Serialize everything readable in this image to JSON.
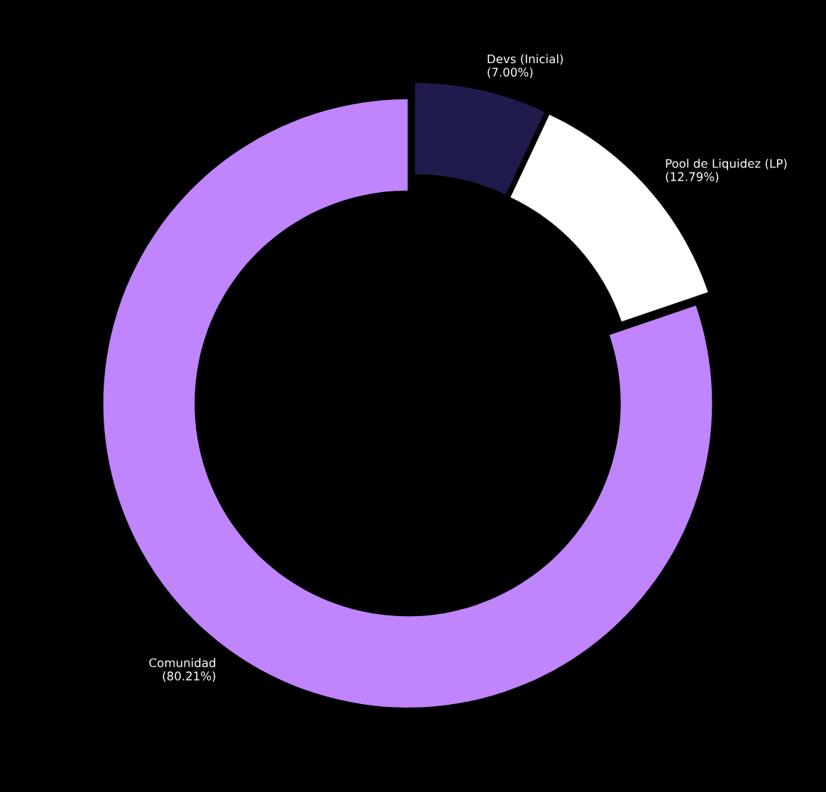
{
  "chart_data": {
    "type": "donut",
    "categories": [
      "Devs (Inicial)",
      "Pool de Liquidez (LP)",
      "Comunidad"
    ],
    "values": [
      7.0,
      12.79,
      80.21
    ],
    "value_labels": [
      "(7.00%)",
      "(12.79%)",
      "(80.21%)"
    ],
    "colors": [
      "#1f1b4d",
      "#ffffff",
      "#c084fc"
    ],
    "legend": false
  }
}
